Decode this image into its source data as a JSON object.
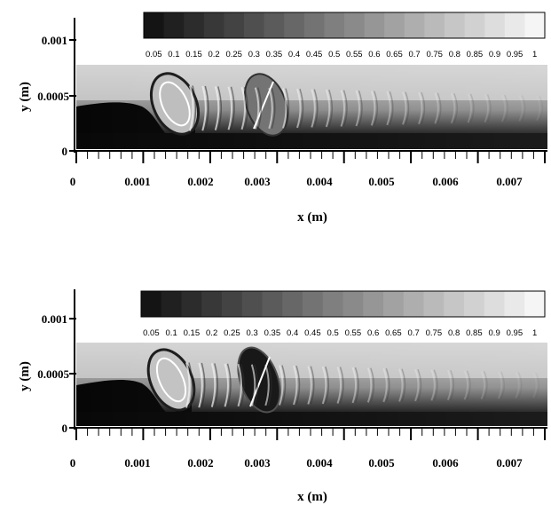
{
  "panels": [
    {
      "x_ticks": [
        "0",
        "0.001",
        "0.002",
        "0.003",
        "0.004",
        "0.005",
        "0.006",
        "0.007"
      ],
      "y_ticks": [
        "0",
        "0.0005",
        "0.001"
      ],
      "colorbar_labels": [
        "0.05",
        "0.1",
        "0.15",
        "0.2",
        "0.25",
        "0.3",
        "0.35",
        "0.4",
        "0.45",
        "0.5",
        "0.55",
        "0.6",
        "0.65",
        "0.7",
        "0.75",
        "0.8",
        "0.85",
        "0.9",
        "0.95",
        "1"
      ],
      "xlabel": "x (m)",
      "ylabel": "y (m)"
    },
    {
      "x_ticks": [
        "0",
        "0.001",
        "0.002",
        "0.003",
        "0.004",
        "0.005",
        "0.006",
        "0.007"
      ],
      "y_ticks": [
        "0",
        "0.0005",
        "0.001"
      ],
      "colorbar_labels": [
        "0.05",
        "0.1",
        "0.15",
        "0.2",
        "0.25",
        "0.3",
        "0.35",
        "0.4",
        "0.45",
        "0.5",
        "0.55",
        "0.6",
        "0.65",
        "0.7",
        "0.75",
        "0.8",
        "0.85",
        "0.9",
        "0.95",
        "1"
      ],
      "xlabel": "x (m)",
      "ylabel": "y (m)"
    }
  ],
  "colors": {
    "background": "#ffffff",
    "axis": "#000000",
    "gas_region": "#d6d6d6",
    "liquid_region": "#0a0a0a"
  }
}
